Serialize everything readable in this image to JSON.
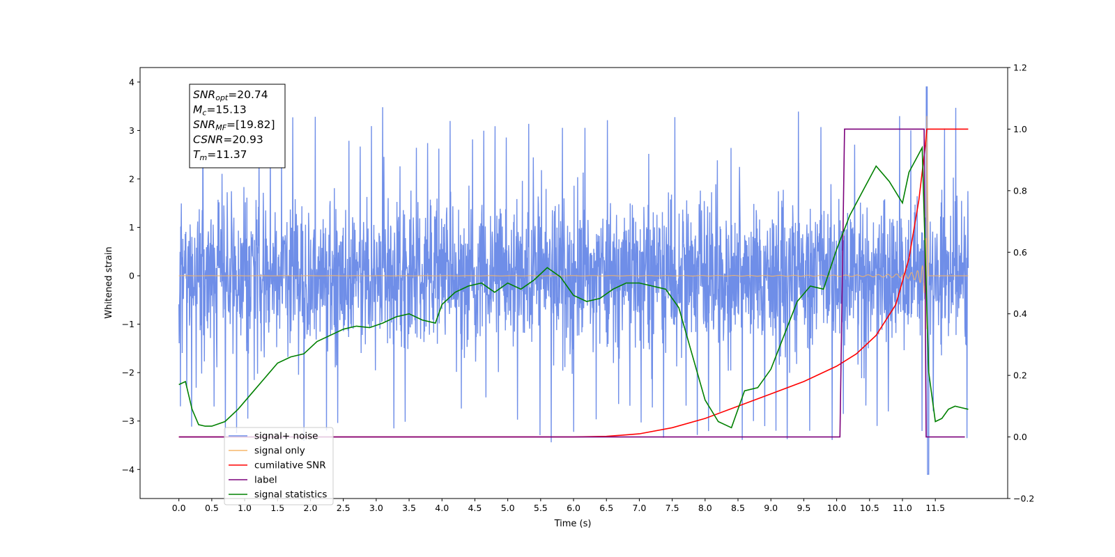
{
  "chart_data": {
    "type": "line",
    "title": "",
    "xlabel": "Time (s)",
    "ylabel": "Whitened strain",
    "xlim": [
      -0.59,
      12.6
    ],
    "ylim": [
      -4.6,
      4.3
    ],
    "y2lim": [
      -0.2,
      1.2
    ],
    "grid": false,
    "legend_location": "lower-left",
    "x_ticks": [
      "0.0",
      "0.5",
      "1.0",
      "1.5",
      "2.0",
      "2.5",
      "3.0",
      "3.5",
      "4.0",
      "4.5",
      "5.0",
      "5.5",
      "6.0",
      "6.5",
      "7.0",
      "7.5",
      "8.0",
      "8.5",
      "9.0",
      "9.5",
      "10.0",
      "10.5",
      "11.0",
      "11.5"
    ],
    "y_ticks": [
      "4",
      "3",
      "2",
      "1",
      "0",
      "−1",
      "−2",
      "−3",
      "−4"
    ],
    "y2_ticks": [
      "1.2",
      "1.0",
      "0.8",
      "0.6",
      "0.4",
      "0.2",
      "0.0",
      "−0.2"
    ],
    "annotation": [
      {
        "base": "SNR",
        "sub": "opt",
        "rest": "=20.74"
      },
      {
        "base": "M",
        "sub": "c",
        "rest": "=15.13"
      },
      {
        "base": "SNR",
        "sub": "MF",
        "rest": "=[19.82]"
      },
      {
        "base": "CSNR",
        "sub": "",
        "rest": "=20.93"
      },
      {
        "base": "T",
        "sub": "m",
        "rest": "=11.37"
      }
    ],
    "series": [
      {
        "name": "signal+ noise",
        "color": "#6f8ee8",
        "axis": "left",
        "kind": "noise",
        "x_range": [
          0.0,
          12.0
        ],
        "std": 0.75,
        "max": 3.9,
        "min": -4.1
      },
      {
        "name": "signal only",
        "color": "#f5b56a",
        "axis": "left",
        "kind": "chirp",
        "x_range": [
          0.0,
          11.37
        ],
        "peak_time": 11.37,
        "max": 3.3
      },
      {
        "name": "cumilative SNR",
        "color": "#ff0000",
        "axis": "right",
        "x": [
          0.0,
          6.0,
          6.5,
          7.0,
          7.5,
          8.0,
          8.5,
          9.0,
          9.5,
          10.0,
          10.3,
          10.6,
          10.9,
          11.1,
          11.25,
          11.35,
          11.37,
          11.5,
          12.0
        ],
        "y": [
          0.0,
          0.0,
          0.002,
          0.01,
          0.03,
          0.06,
          0.1,
          0.14,
          0.18,
          0.23,
          0.27,
          0.33,
          0.43,
          0.58,
          0.77,
          0.95,
          1.0,
          1.0,
          1.0
        ]
      },
      {
        "name": "label",
        "color": "#7b007b",
        "axis": "right",
        "x": [
          0.0,
          10.05,
          10.12,
          11.33,
          11.36,
          11.95
        ],
        "y": [
          0.0,
          0.0,
          1.0,
          1.0,
          0.0,
          0.0
        ]
      },
      {
        "name": "signal statistics",
        "color": "#008000",
        "axis": "right",
        "x": [
          0.0,
          0.1,
          0.2,
          0.3,
          0.4,
          0.5,
          0.7,
          0.9,
          1.1,
          1.3,
          1.5,
          1.7,
          1.9,
          2.1,
          2.3,
          2.5,
          2.7,
          2.9,
          3.1,
          3.3,
          3.5,
          3.7,
          3.9,
          4.0,
          4.2,
          4.4,
          4.6,
          4.8,
          5.0,
          5.2,
          5.4,
          5.6,
          5.8,
          6.0,
          6.2,
          6.4,
          6.6,
          6.8,
          7.0,
          7.2,
          7.4,
          7.6,
          7.8,
          8.0,
          8.2,
          8.4,
          8.6,
          8.8,
          9.0,
          9.2,
          9.4,
          9.6,
          9.8,
          10.0,
          10.2,
          10.4,
          10.6,
          10.8,
          11.0,
          11.1,
          11.2,
          11.3,
          11.4,
          11.5,
          11.6,
          11.7,
          11.8,
          11.9,
          12.0
        ],
        "y": [
          0.17,
          0.18,
          0.09,
          0.04,
          0.035,
          0.035,
          0.05,
          0.09,
          0.14,
          0.19,
          0.24,
          0.26,
          0.27,
          0.31,
          0.33,
          0.35,
          0.36,
          0.355,
          0.37,
          0.39,
          0.4,
          0.38,
          0.37,
          0.43,
          0.47,
          0.49,
          0.5,
          0.47,
          0.5,
          0.48,
          0.51,
          0.55,
          0.52,
          0.46,
          0.44,
          0.45,
          0.48,
          0.5,
          0.5,
          0.49,
          0.48,
          0.42,
          0.27,
          0.12,
          0.05,
          0.03,
          0.15,
          0.16,
          0.22,
          0.33,
          0.44,
          0.49,
          0.48,
          0.61,
          0.72,
          0.8,
          0.88,
          0.83,
          0.76,
          0.86,
          0.9,
          0.94,
          0.21,
          0.05,
          0.06,
          0.09,
          0.1,
          0.095,
          0.09
        ]
      }
    ]
  }
}
